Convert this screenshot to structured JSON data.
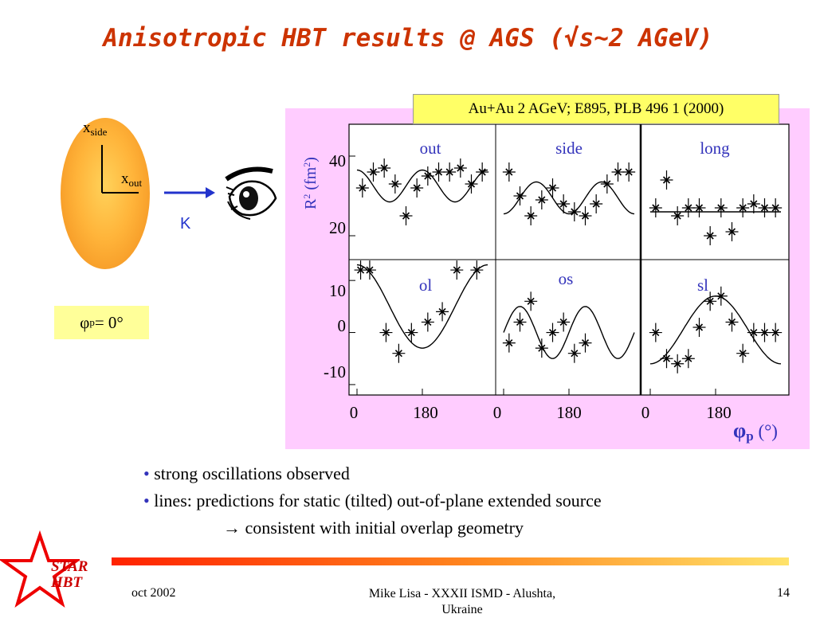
{
  "slide": {
    "title": "Anisotropic HBT results @ AGS (√s~2 AGeV)",
    "axis_side_base": "x",
    "axis_side_sub": "side",
    "axis_out_base": "x",
    "axis_out_sub": "out",
    "k_label": "K",
    "phi_base": "φ",
    "phi_sub": "p",
    "phi_rest": " = 0°",
    "reference": "Au+Au 2 AGeV;  E895, PLB 496 1 (2000)",
    "bullets": [
      "strong oscillations observed",
      "lines: predictions for static (tilted) out-of-plane extended source",
      "→ consistent with initial overlap geometry"
    ],
    "bullet_dot": "•"
  },
  "footer": {
    "date": "oct 2002",
    "center_line1": "Mike Lisa - XXXII ISMD - Alushta,",
    "center_line2": "Ukraine",
    "page": "14",
    "logo_line1": "STAR",
    "logo_line2": "HBT"
  },
  "chart_data": {
    "type": "scatter",
    "ylabel_base": "R",
    "ylabel_sup": "2",
    "ylabel_rest": " (fm",
    "ylabel_sup2": "2",
    "ylabel_end": ")",
    "xlabel_base": "φ",
    "xlabel_sub": "p",
    "xlabel_unit": " (°)",
    "x_tick_labels": [
      "0",
      "180"
    ],
    "top_row_y_ticks": [
      "40",
      "20"
    ],
    "bottom_row_y_ticks": [
      "10",
      "0",
      "-10"
    ],
    "top_ylim": [
      14,
      48
    ],
    "bottom_ylim": [
      -12,
      14
    ],
    "xlim": [
      0,
      360
    ],
    "colors": {
      "panel_bg": "#ffccff",
      "label": "#3333bb",
      "data": "#000000"
    },
    "panels": [
      {
        "name": "out",
        "row": 0,
        "col": 0,
        "x": [
          15,
          45,
          75,
          105,
          135,
          165,
          195,
          225,
          255,
          285,
          315,
          345
        ],
        "y": [
          32,
          36,
          37,
          33,
          25,
          32,
          35,
          36,
          36,
          37,
          33,
          36
        ],
        "curve": {
          "mean": 32.5,
          "amp2": 4.0,
          "amp1": 0,
          "phase": 0
        }
      },
      {
        "name": "side",
        "row": 0,
        "col": 1,
        "x": [
          15,
          45,
          75,
          105,
          135,
          165,
          195,
          225,
          255,
          285,
          315,
          345
        ],
        "y": [
          36,
          30,
          25,
          29,
          32,
          28,
          26,
          25,
          28,
          33,
          36,
          36
        ],
        "curve": {
          "mean": 29.5,
          "amp2": -4.0,
          "amp1": 0,
          "phase": 0
        }
      },
      {
        "name": "long",
        "row": 0,
        "col": 2,
        "x": [
          15,
          45,
          75,
          105,
          135,
          165,
          195,
          225,
          255,
          285,
          315,
          345
        ],
        "y": [
          27,
          34,
          25,
          27,
          27,
          20,
          27,
          21,
          27,
          28,
          27,
          27
        ],
        "curve": {
          "mean": 26,
          "amp2": 0,
          "amp1": 0,
          "phase": 0
        }
      },
      {
        "name": "ol",
        "row": 1,
        "col": 0,
        "x": [
          10,
          35,
          80,
          115,
          150,
          195,
          235,
          275,
          330
        ],
        "y": [
          12,
          12,
          0,
          -4,
          0,
          2,
          4,
          12,
          12
        ],
        "curve": {
          "mean": 5,
          "amp2": 0,
          "amp1": 8,
          "phase": 0
        }
      },
      {
        "name": "os",
        "row": 1,
        "col": 1,
        "x": [
          15,
          45,
          75,
          105,
          135,
          165,
          195,
          225
        ],
        "y": [
          -2,
          2,
          6,
          -3,
          0,
          2,
          -4,
          -2
        ],
        "curve": {
          "mean": 0,
          "amp2": 5,
          "amp1": 0,
          "phase": 45
        }
      },
      {
        "name": "sl",
        "row": 1,
        "col": 2,
        "x": [
          15,
          45,
          75,
          105,
          135,
          165,
          195,
          225,
          255,
          285,
          315,
          345
        ],
        "y": [
          0,
          -5,
          -6,
          -5,
          1,
          6,
          7,
          2,
          -4,
          0,
          0,
          0
        ],
        "curve": {
          "mean": 0.5,
          "amp2": 0,
          "amp1": -6.5,
          "phase": 0
        }
      }
    ]
  }
}
